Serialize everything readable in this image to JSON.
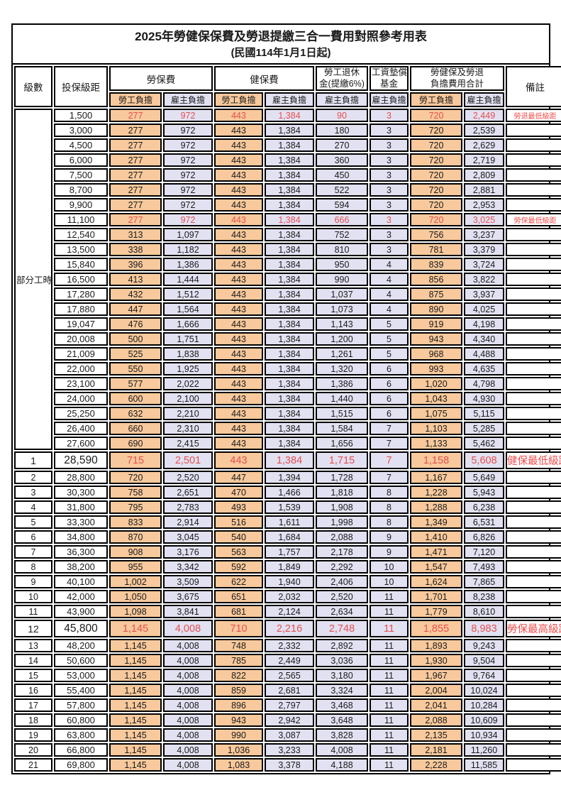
{
  "title": "2025年勞健保保費及勞退提繳三合一費用對照參考用表",
  "subtitle": "(民國114年1月1日起)",
  "colors": {
    "employee_bg": "#f8c99c",
    "employer_bg": "#e2e1f2",
    "highlight_text": "#e55050",
    "border": "#000000"
  },
  "header": {
    "level": "級數",
    "bracket": "投保級距",
    "labor_ins": "勞保費",
    "health_ins": "健保費",
    "pension_l1": "勞工退休",
    "pension_l2": "金(提繳6%)",
    "wage_fund_l1": "工資墊償",
    "wage_fund_l2": "基金",
    "total_l1": "勞健保及勞退",
    "total_l2": "負擔費用合計",
    "remark": "備註",
    "employee": "勞工負擔",
    "employer": "雇主負擔"
  },
  "part_time_label": "部分工時",
  "part_time_rows": 23,
  "rows": [
    {
      "level": null,
      "bracket": "1,500",
      "values": [
        "277",
        "972",
        "443",
        "1,384",
        "90",
        "3",
        "720",
        "2,449"
      ],
      "note": "勞退最低級距",
      "highlight": true,
      "big": false
    },
    {
      "level": null,
      "bracket": "3,000",
      "values": [
        "277",
        "972",
        "443",
        "1,384",
        "180",
        "3",
        "720",
        "2,539"
      ],
      "note": "",
      "highlight": false,
      "big": false
    },
    {
      "level": null,
      "bracket": "4,500",
      "values": [
        "277",
        "972",
        "443",
        "1,384",
        "270",
        "3",
        "720",
        "2,629"
      ],
      "note": "",
      "highlight": false,
      "big": false
    },
    {
      "level": null,
      "bracket": "6,000",
      "values": [
        "277",
        "972",
        "443",
        "1,384",
        "360",
        "3",
        "720",
        "2,719"
      ],
      "note": "",
      "highlight": false,
      "big": false
    },
    {
      "level": null,
      "bracket": "7,500",
      "values": [
        "277",
        "972",
        "443",
        "1,384",
        "450",
        "3",
        "720",
        "2,809"
      ],
      "note": "",
      "highlight": false,
      "big": false
    },
    {
      "level": null,
      "bracket": "8,700",
      "values": [
        "277",
        "972",
        "443",
        "1,384",
        "522",
        "3",
        "720",
        "2,881"
      ],
      "note": "",
      "highlight": false,
      "big": false
    },
    {
      "level": null,
      "bracket": "9,900",
      "values": [
        "277",
        "972",
        "443",
        "1,384",
        "594",
        "3",
        "720",
        "2,953"
      ],
      "note": "",
      "highlight": false,
      "big": false
    },
    {
      "level": null,
      "bracket": "11,100",
      "values": [
        "277",
        "972",
        "443",
        "1,384",
        "666",
        "3",
        "720",
        "3,025"
      ],
      "note": "勞保最低級距",
      "highlight": true,
      "big": false
    },
    {
      "level": null,
      "bracket": "12,540",
      "values": [
        "313",
        "1,097",
        "443",
        "1,384",
        "752",
        "3",
        "756",
        "3,237"
      ],
      "note": "",
      "highlight": false,
      "big": false
    },
    {
      "level": null,
      "bracket": "13,500",
      "values": [
        "338",
        "1,182",
        "443",
        "1,384",
        "810",
        "3",
        "781",
        "3,379"
      ],
      "note": "",
      "highlight": false,
      "big": false
    },
    {
      "level": null,
      "bracket": "15,840",
      "values": [
        "396",
        "1,386",
        "443",
        "1,384",
        "950",
        "4",
        "839",
        "3,724"
      ],
      "note": "",
      "highlight": false,
      "big": false
    },
    {
      "level": null,
      "bracket": "16,500",
      "values": [
        "413",
        "1,444",
        "443",
        "1,384",
        "990",
        "4",
        "856",
        "3,822"
      ],
      "note": "",
      "highlight": false,
      "big": false
    },
    {
      "level": null,
      "bracket": "17,280",
      "values": [
        "432",
        "1,512",
        "443",
        "1,384",
        "1,037",
        "4",
        "875",
        "3,937"
      ],
      "note": "",
      "highlight": false,
      "big": false
    },
    {
      "level": null,
      "bracket": "17,880",
      "values": [
        "447",
        "1,564",
        "443",
        "1,384",
        "1,073",
        "4",
        "890",
        "4,025"
      ],
      "note": "",
      "highlight": false,
      "big": false
    },
    {
      "level": null,
      "bracket": "19,047",
      "values": [
        "476",
        "1,666",
        "443",
        "1,384",
        "1,143",
        "5",
        "919",
        "4,198"
      ],
      "note": "",
      "highlight": false,
      "big": false
    },
    {
      "level": null,
      "bracket": "20,008",
      "values": [
        "500",
        "1,751",
        "443",
        "1,384",
        "1,200",
        "5",
        "943",
        "4,340"
      ],
      "note": "",
      "highlight": false,
      "big": false
    },
    {
      "level": null,
      "bracket": "21,009",
      "values": [
        "525",
        "1,838",
        "443",
        "1,384",
        "1,261",
        "5",
        "968",
        "4,488"
      ],
      "note": "",
      "highlight": false,
      "big": false
    },
    {
      "level": null,
      "bracket": "22,000",
      "values": [
        "550",
        "1,925",
        "443",
        "1,384",
        "1,320",
        "6",
        "993",
        "4,635"
      ],
      "note": "",
      "highlight": false,
      "big": false
    },
    {
      "level": null,
      "bracket": "23,100",
      "values": [
        "577",
        "2,022",
        "443",
        "1,384",
        "1,386",
        "6",
        "1,020",
        "4,798"
      ],
      "note": "",
      "highlight": false,
      "big": false
    },
    {
      "level": null,
      "bracket": "24,000",
      "values": [
        "600",
        "2,100",
        "443",
        "1,384",
        "1,440",
        "6",
        "1,043",
        "4,930"
      ],
      "note": "",
      "highlight": false,
      "big": false
    },
    {
      "level": null,
      "bracket": "25,250",
      "values": [
        "632",
        "2,210",
        "443",
        "1,384",
        "1,515",
        "6",
        "1,075",
        "5,115"
      ],
      "note": "",
      "highlight": false,
      "big": false
    },
    {
      "level": null,
      "bracket": "26,400",
      "values": [
        "660",
        "2,310",
        "443",
        "1,384",
        "1,584",
        "7",
        "1,103",
        "5,285"
      ],
      "note": "",
      "highlight": false,
      "big": false
    },
    {
      "level": null,
      "bracket": "27,600",
      "values": [
        "690",
        "2,415",
        "443",
        "1,384",
        "1,656",
        "7",
        "1,133",
        "5,462"
      ],
      "note": "",
      "highlight": false,
      "big": false
    },
    {
      "level": "1",
      "bracket": "28,590",
      "values": [
        "715",
        "2,501",
        "443",
        "1,384",
        "1,715",
        "7",
        "1,158",
        "5,608"
      ],
      "note": "健保最低級距",
      "highlight": true,
      "big": true
    },
    {
      "level": "2",
      "bracket": "28,800",
      "values": [
        "720",
        "2,520",
        "447",
        "1,394",
        "1,728",
        "7",
        "1,167",
        "5,649"
      ],
      "note": "",
      "highlight": false,
      "big": false
    },
    {
      "level": "3",
      "bracket": "30,300",
      "values": [
        "758",
        "2,651",
        "470",
        "1,466",
        "1,818",
        "8",
        "1,228",
        "5,943"
      ],
      "note": "",
      "highlight": false,
      "big": false
    },
    {
      "level": "4",
      "bracket": "31,800",
      "values": [
        "795",
        "2,783",
        "493",
        "1,539",
        "1,908",
        "8",
        "1,288",
        "6,238"
      ],
      "note": "",
      "highlight": false,
      "big": false
    },
    {
      "level": "5",
      "bracket": "33,300",
      "values": [
        "833",
        "2,914",
        "516",
        "1,611",
        "1,998",
        "8",
        "1,349",
        "6,531"
      ],
      "note": "",
      "highlight": false,
      "big": false
    },
    {
      "level": "6",
      "bracket": "34,800",
      "values": [
        "870",
        "3,045",
        "540",
        "1,684",
        "2,088",
        "9",
        "1,410",
        "6,826"
      ],
      "note": "",
      "highlight": false,
      "big": false
    },
    {
      "level": "7",
      "bracket": "36,300",
      "values": [
        "908",
        "3,176",
        "563",
        "1,757",
        "2,178",
        "9",
        "1,471",
        "7,120"
      ],
      "note": "",
      "highlight": false,
      "big": false
    },
    {
      "level": "8",
      "bracket": "38,200",
      "values": [
        "955",
        "3,342",
        "592",
        "1,849",
        "2,292",
        "10",
        "1,547",
        "7,493"
      ],
      "note": "",
      "highlight": false,
      "big": false
    },
    {
      "level": "9",
      "bracket": "40,100",
      "values": [
        "1,002",
        "3,509",
        "622",
        "1,940",
        "2,406",
        "10",
        "1,624",
        "7,865"
      ],
      "note": "",
      "highlight": false,
      "big": false
    },
    {
      "level": "10",
      "bracket": "42,000",
      "values": [
        "1,050",
        "3,675",
        "651",
        "2,032",
        "2,520",
        "11",
        "1,701",
        "8,238"
      ],
      "note": "",
      "highlight": false,
      "big": false
    },
    {
      "level": "11",
      "bracket": "43,900",
      "values": [
        "1,098",
        "3,841",
        "681",
        "2,124",
        "2,634",
        "11",
        "1,779",
        "8,610"
      ],
      "note": "",
      "highlight": false,
      "big": false
    },
    {
      "level": "12",
      "bracket": "45,800",
      "values": [
        "1,145",
        "4,008",
        "710",
        "2,216",
        "2,748",
        "11",
        "1,855",
        "8,983"
      ],
      "note": "勞保最高級距",
      "highlight": true,
      "big": true
    },
    {
      "level": "13",
      "bracket": "48,200",
      "values": [
        "1,145",
        "4,008",
        "748",
        "2,332",
        "2,892",
        "11",
        "1,893",
        "9,243"
      ],
      "note": "",
      "highlight": false,
      "big": false
    },
    {
      "level": "14",
      "bracket": "50,600",
      "values": [
        "1,145",
        "4,008",
        "785",
        "2,449",
        "3,036",
        "11",
        "1,930",
        "9,504"
      ],
      "note": "",
      "highlight": false,
      "big": false
    },
    {
      "level": "15",
      "bracket": "53,000",
      "values": [
        "1,145",
        "4,008",
        "822",
        "2,565",
        "3,180",
        "11",
        "1,967",
        "9,764"
      ],
      "note": "",
      "highlight": false,
      "big": false
    },
    {
      "level": "16",
      "bracket": "55,400",
      "values": [
        "1,145",
        "4,008",
        "859",
        "2,681",
        "3,324",
        "11",
        "2,004",
        "10,024"
      ],
      "note": "",
      "highlight": false,
      "big": false
    },
    {
      "level": "17",
      "bracket": "57,800",
      "values": [
        "1,145",
        "4,008",
        "896",
        "2,797",
        "3,468",
        "11",
        "2,041",
        "10,284"
      ],
      "note": "",
      "highlight": false,
      "big": false
    },
    {
      "level": "18",
      "bracket": "60,800",
      "values": [
        "1,145",
        "4,008",
        "943",
        "2,942",
        "3,648",
        "11",
        "2,088",
        "10,609"
      ],
      "note": "",
      "highlight": false,
      "big": false
    },
    {
      "level": "19",
      "bracket": "63,800",
      "values": [
        "1,145",
        "4,008",
        "990",
        "3,087",
        "3,828",
        "11",
        "2,135",
        "10,934"
      ],
      "note": "",
      "highlight": false,
      "big": false
    },
    {
      "level": "20",
      "bracket": "66,800",
      "values": [
        "1,145",
        "4,008",
        "1,036",
        "3,233",
        "4,008",
        "11",
        "2,181",
        "11,260"
      ],
      "note": "",
      "highlight": false,
      "big": false
    },
    {
      "level": "21",
      "bracket": "69,800",
      "values": [
        "1,145",
        "4,008",
        "1,083",
        "3,378",
        "4,188",
        "11",
        "2,228",
        "11,585"
      ],
      "note": "",
      "highlight": false,
      "big": false
    }
  ]
}
